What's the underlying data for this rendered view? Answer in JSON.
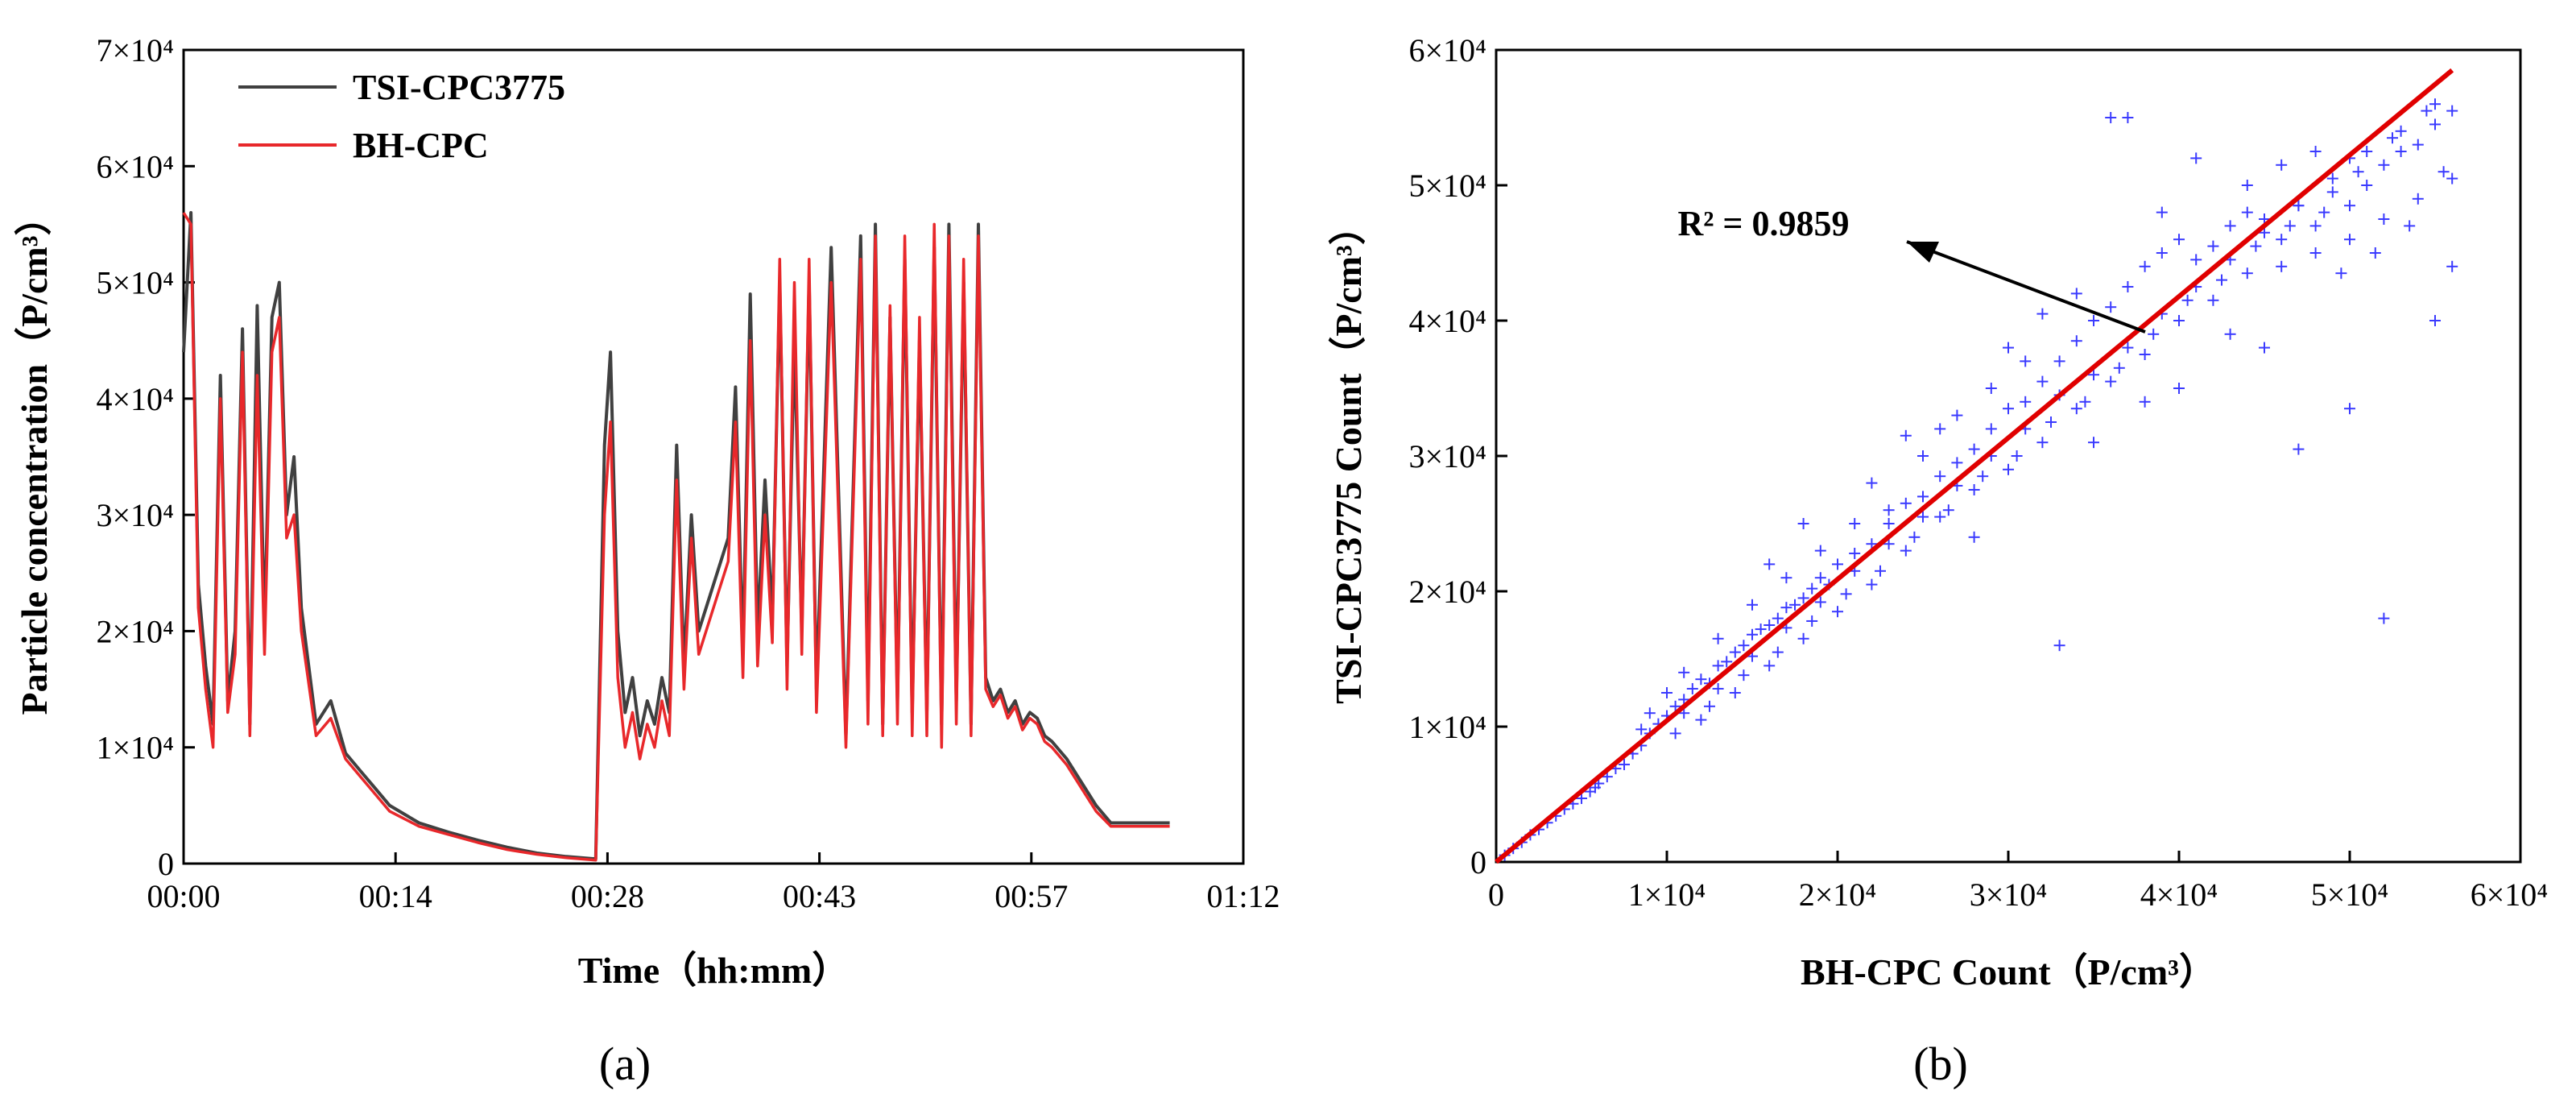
{
  "chart_data": [
    {
      "type": "line",
      "panel_label": "(a)",
      "title": "",
      "xlabel": "Time（hh:mm）",
      "ylabel": "Particle concentration（P/cm³）",
      "ylim": [
        0,
        70000
      ],
      "xlim_minutes": [
        0,
        72
      ],
      "xtick_labels": [
        "00:00",
        "00:14",
        "00:28",
        "00:43",
        "00:57",
        "01:12"
      ],
      "ytick_labels": [
        "0",
        "1×10⁴",
        "2×10⁴",
        "3×10⁴",
        "4×10⁴",
        "5×10⁴",
        "6×10⁴",
        "7×10⁴"
      ],
      "legend_position": "top-left",
      "x_minutes": [
        0,
        0.5,
        1,
        1.5,
        2,
        2.5,
        3,
        3.5,
        4,
        4.5,
        5,
        5.5,
        6,
        6.5,
        7,
        7.5,
        8,
        9,
        10,
        11,
        12,
        13,
        14,
        16,
        18,
        20,
        22,
        24,
        26,
        28,
        28.6,
        29,
        29.5,
        30,
        30.5,
        31,
        31.5,
        32,
        32.5,
        33,
        33.5,
        34,
        34.5,
        35,
        36,
        37,
        37.5,
        38,
        38.5,
        39,
        39.5,
        40,
        40.5,
        41,
        41.5,
        42,
        42.5,
        43,
        44,
        45,
        46,
        46.5,
        47,
        47.5,
        48,
        48.5,
        49,
        49.5,
        50,
        50.5,
        51,
        51.5,
        52,
        52.5,
        53,
        53.5,
        54,
        54.5,
        55,
        55.5,
        56,
        56.5,
        57,
        57.5,
        58,
        58.5,
        59,
        60,
        61,
        62,
        63,
        64,
        65,
        66,
        67
      ],
      "series": [
        {
          "name": "TSI-CPC3775",
          "color": "#404040",
          "values": [
            44000,
            56000,
            24000,
            17000,
            12000,
            42000,
            14000,
            20000,
            46000,
            12000,
            48000,
            20000,
            47000,
            50000,
            30000,
            35000,
            22000,
            12000,
            14000,
            9500,
            8000,
            6500,
            5000,
            3500,
            2700,
            2000,
            1400,
            900,
            600,
            400,
            36000,
            44000,
            20000,
            13000,
            16000,
            11000,
            14000,
            12000,
            16000,
            13000,
            36000,
            17000,
            30000,
            20000,
            24000,
            28000,
            41000,
            18000,
            49000,
            20000,
            33000,
            21000,
            50000,
            17000,
            45000,
            20000,
            50000,
            15000,
            53000,
            11000,
            54000,
            14000,
            55000,
            12000,
            47000,
            14000,
            52000,
            13000,
            45000,
            13000,
            53000,
            12000,
            55000,
            14000,
            50000,
            12000,
            55000,
            16000,
            14000,
            15000,
            13000,
            14000,
            12000,
            13000,
            12500,
            11000,
            10500,
            9000,
            7000,
            5000,
            3500,
            3500,
            3500,
            3500,
            3500
          ]
        },
        {
          "name": "BH-CPC",
          "color": "#e8282b",
          "values": [
            56000,
            55000,
            22000,
            15000,
            10000,
            40000,
            13000,
            18000,
            44000,
            11000,
            42000,
            18000,
            44000,
            47000,
            28000,
            30000,
            20000,
            11000,
            12500,
            9000,
            7500,
            6000,
            4500,
            3200,
            2500,
            1800,
            1200,
            800,
            500,
            300,
            30000,
            38000,
            16000,
            10000,
            13000,
            9000,
            12000,
            10000,
            14000,
            11000,
            33000,
            15000,
            28000,
            18000,
            22000,
            26000,
            38000,
            16000,
            45000,
            17000,
            30000,
            19000,
            52000,
            15000,
            50000,
            18000,
            52000,
            13000,
            50000,
            10000,
            52000,
            12000,
            54000,
            11000,
            48000,
            12000,
            54000,
            11000,
            47000,
            11000,
            55000,
            10000,
            54000,
            12000,
            52000,
            11000,
            54000,
            15000,
            13500,
            14500,
            12500,
            13500,
            11500,
            12500,
            12000,
            10500,
            10000,
            8500,
            6500,
            4500,
            3200,
            3200,
            3200,
            3200,
            3200
          ]
        }
      ]
    },
    {
      "type": "scatter",
      "panel_label": "(b)",
      "title": "",
      "xlabel": "BH-CPC Count（P/cm³）",
      "ylabel": "TSI-CPC3775 Count（P/cm³）",
      "xlim": [
        0,
        60000
      ],
      "ylim": [
        0,
        60000
      ],
      "xtick_labels": [
        "0",
        "1×10⁴",
        "2×10⁴",
        "3×10⁴",
        "4×10⁴",
        "5×10⁴",
        "6×10⁴"
      ],
      "ytick_labels": [
        "0",
        "1×10⁴",
        "2×10⁴",
        "3×10⁴",
        "4×10⁴",
        "5×10⁴",
        "6×10⁴"
      ],
      "scatter_color": "#3b3bff",
      "fit_line": {
        "color": "#e00000",
        "x": [
          0,
          56000
        ],
        "y": [
          0,
          58500
        ]
      },
      "annotation": {
        "label": "R² = 0.9859",
        "r_squared": 0.9859
      },
      "points": [
        [
          1000,
          1000
        ],
        [
          2000,
          2000
        ],
        [
          3000,
          2900
        ],
        [
          4000,
          3900
        ],
        [
          5000,
          4700
        ],
        [
          5500,
          5200
        ],
        [
          6000,
          5800
        ],
        [
          7000,
          6900
        ],
        [
          8000,
          8000
        ],
        [
          8500,
          8600
        ],
        [
          9000,
          9500
        ],
        [
          9500,
          10200
        ],
        [
          10000,
          10800
        ],
        [
          10500,
          11500
        ],
        [
          11000,
          12000
        ],
        [
          11500,
          12800
        ],
        [
          12000,
          13500
        ],
        [
          12500,
          13200
        ],
        [
          13000,
          14500
        ],
        [
          13500,
          14800
        ],
        [
          14000,
          15500
        ],
        [
          14500,
          16000
        ],
        [
          15000,
          16800
        ],
        [
          15500,
          17200
        ],
        [
          16000,
          17500
        ],
        [
          16500,
          18000
        ],
        [
          17000,
          18800
        ],
        [
          17500,
          19000
        ],
        [
          18000,
          19500
        ],
        [
          18500,
          20200
        ],
        [
          19000,
          21000
        ],
        [
          19500,
          20500
        ],
        [
          20000,
          22000
        ],
        [
          21000,
          22800
        ],
        [
          22000,
          23500
        ],
        [
          23000,
          25000
        ],
        [
          24000,
          26500
        ],
        [
          25000,
          27000
        ],
        [
          26000,
          28500
        ],
        [
          27000,
          29500
        ],
        [
          28000,
          30500
        ],
        [
          29000,
          32000
        ],
        [
          30000,
          33500
        ],
        [
          31000,
          34000
        ],
        [
          32000,
          35500
        ],
        [
          33000,
          37000
        ],
        [
          34000,
          38500
        ],
        [
          35000,
          40000
        ],
        [
          36000,
          41000
        ],
        [
          37000,
          42500
        ],
        [
          38000,
          44000
        ],
        [
          39000,
          45000
        ],
        [
          40000,
          46000
        ],
        [
          41000,
          44500
        ],
        [
          42000,
          45500
        ],
        [
          43000,
          47000
        ],
        [
          44000,
          48000
        ],
        [
          45000,
          47500
        ],
        [
          46000,
          46000
        ],
        [
          47000,
          48500
        ],
        [
          48000,
          47000
        ],
        [
          49000,
          49500
        ],
        [
          50000,
          48500
        ],
        [
          51000,
          50000
        ],
        [
          52000,
          51500
        ],
        [
          53000,
          52500
        ],
        [
          54000,
          53000
        ],
        [
          55000,
          54500
        ],
        [
          56000,
          55500
        ],
        [
          12000,
          10500
        ],
        [
          14000,
          12500
        ],
        [
          16000,
          14500
        ],
        [
          18000,
          16500
        ],
        [
          20000,
          18500
        ],
        [
          22000,
          20500
        ],
        [
          24000,
          23000
        ],
        [
          26000,
          25500
        ],
        [
          28000,
          27500
        ],
        [
          30000,
          29000
        ],
        [
          32000,
          31000
        ],
        [
          34000,
          33500
        ],
        [
          36000,
          35500
        ],
        [
          38000,
          37500
        ],
        [
          40000,
          40000
        ],
        [
          42000,
          41500
        ],
        [
          44000,
          43500
        ],
        [
          46000,
          44000
        ],
        [
          48000,
          45000
        ],
        [
          50000,
          46000
        ],
        [
          52000,
          47500
        ],
        [
          54000,
          49000
        ],
        [
          56000,
          44000
        ],
        [
          55000,
          40000
        ],
        [
          52000,
          18000
        ],
        [
          50000,
          33500
        ],
        [
          36000,
          55000
        ],
        [
          37000,
          55000
        ],
        [
          47000,
          30500
        ],
        [
          41000,
          52000
        ],
        [
          28000,
          24000
        ],
        [
          33000,
          16000
        ],
        [
          40000,
          35000
        ],
        [
          45000,
          38000
        ],
        [
          23000,
          26000
        ],
        [
          25000,
          30000
        ],
        [
          27000,
          33000
        ],
        [
          29000,
          35000
        ],
        [
          31000,
          37000
        ],
        [
          19000,
          23000
        ],
        [
          21000,
          25000
        ],
        [
          17000,
          21000
        ],
        [
          15000,
          19000
        ],
        [
          13000,
          16500
        ],
        [
          11000,
          14000
        ],
        [
          10000,
          12500
        ],
        [
          9000,
          11000
        ],
        [
          8500,
          9800
        ],
        [
          10500,
          9500
        ],
        [
          12500,
          11500
        ],
        [
          14500,
          13800
        ],
        [
          16500,
          15500
        ],
        [
          18500,
          17800
        ],
        [
          20500,
          19800
        ],
        [
          22500,
          21500
        ],
        [
          24500,
          24000
        ],
        [
          26500,
          26000
        ],
        [
          28500,
          28500
        ],
        [
          30500,
          30000
        ],
        [
          32500,
          32500
        ],
        [
          34500,
          34000
        ],
        [
          36500,
          36500
        ],
        [
          38500,
          39000
        ],
        [
          40500,
          41500
        ],
        [
          42500,
          43000
        ],
        [
          44500,
          45500
        ],
        [
          46500,
          47000
        ],
        [
          48500,
          48000
        ],
        [
          50500,
          51000
        ],
        [
          52500,
          53500
        ],
        [
          54500,
          55500
        ],
        [
          55500,
          51000
        ],
        [
          53500,
          47000
        ],
        [
          51500,
          45000
        ],
        [
          49500,
          43500
        ],
        [
          35000,
          31000
        ],
        [
          38000,
          34000
        ],
        [
          43000,
          39000
        ],
        [
          22000,
          28000
        ],
        [
          26000,
          32000
        ],
        [
          34000,
          42000
        ],
        [
          30000,
          38000
        ],
        [
          18000,
          25000
        ],
        [
          16000,
          22000
        ],
        [
          24000,
          31500
        ],
        [
          32000,
          40500
        ],
        [
          39000,
          48000
        ],
        [
          44000,
          50000
        ],
        [
          46000,
          51500
        ],
        [
          48000,
          52500
        ],
        [
          50000,
          52000
        ],
        [
          7500,
          7200
        ],
        [
          6500,
          6300
        ],
        [
          5800,
          5500
        ],
        [
          4500,
          4300
        ],
        [
          3500,
          3400
        ],
        [
          2500,
          2400
        ],
        [
          1500,
          1450
        ],
        [
          500,
          500
        ],
        [
          11000,
          11000
        ],
        [
          13000,
          12800
        ],
        [
          15000,
          15200
        ],
        [
          17000,
          17300
        ],
        [
          19000,
          19200
        ],
        [
          21000,
          21500
        ],
        [
          23000,
          23500
        ],
        [
          25000,
          25500
        ],
        [
          27000,
          27800
        ],
        [
          29000,
          30000
        ],
        [
          31000,
          32000
        ],
        [
          33000,
          34500
        ],
        [
          35000,
          36000
        ],
        [
          37000,
          38000
        ],
        [
          39000,
          40500
        ],
        [
          41000,
          42500
        ],
        [
          43000,
          44500
        ],
        [
          45000,
          46500
        ],
        [
          47000,
          48500
        ],
        [
          49000,
          50500
        ],
        [
          51000,
          52500
        ],
        [
          53000,
          54000
        ],
        [
          55000,
          56000
        ],
        [
          56000,
          50500
        ]
      ]
    }
  ]
}
